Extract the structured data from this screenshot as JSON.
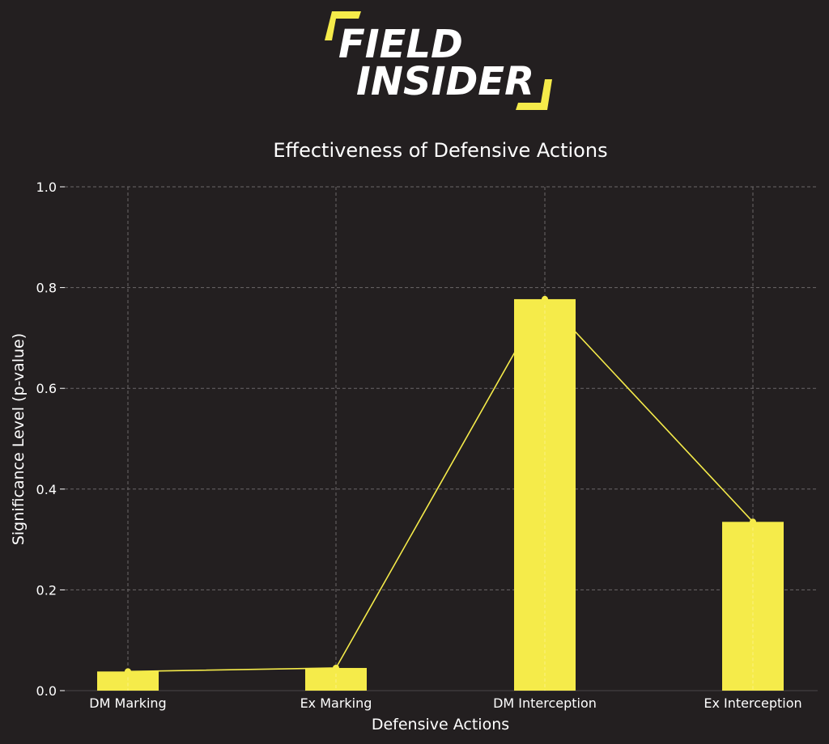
{
  "logo": {
    "line1": "FIELD",
    "line2": "INSIDER"
  },
  "colors": {
    "background": "#231f20",
    "accent": "#f5eb4a",
    "text": "#ffffff",
    "grid": "#6b6768"
  },
  "chart_data": {
    "type": "bar",
    "title": "Effectiveness of Defensive Actions",
    "xlabel": "Defensive Actions",
    "ylabel": "Significance Level (p-value)",
    "categories": [
      "DM Marking",
      "Ex Marking",
      "DM Interception",
      "Ex Interception"
    ],
    "values": [
      0.038,
      0.045,
      0.777,
      0.335
    ],
    "overlay_line": true,
    "ylim": [
      0,
      1.0
    ],
    "yticks": [
      "0.0",
      "0.2",
      "0.4",
      "0.6",
      "0.8",
      "1.0"
    ],
    "grid": true
  }
}
